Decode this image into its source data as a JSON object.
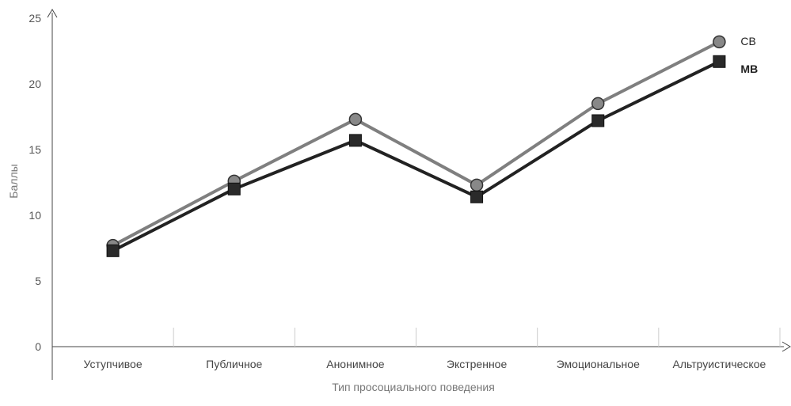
{
  "chart_data": {
    "type": "line",
    "title": "",
    "xlabel": "Тип просоциального поведения",
    "ylabel": "Баллы",
    "ylim": [
      0,
      25
    ],
    "yticks": [
      0,
      5,
      10,
      15,
      20,
      25
    ],
    "grid": false,
    "legend": "inline at line ends (right)",
    "categories": [
      "Уступчивое",
      "Публичное",
      "Анонимное",
      "Экстренное",
      "Эмоциональное",
      "Альтруистическое"
    ],
    "series": [
      {
        "name": "СВ",
        "marker": "circle",
        "color": "#7f7f7f",
        "values": [
          7.7,
          12.6,
          17.3,
          12.3,
          18.5,
          23.2
        ]
      },
      {
        "name": "МВ",
        "marker": "square",
        "color": "#222222",
        "values": [
          7.3,
          12.0,
          15.7,
          11.4,
          17.2,
          21.7
        ]
      }
    ]
  }
}
